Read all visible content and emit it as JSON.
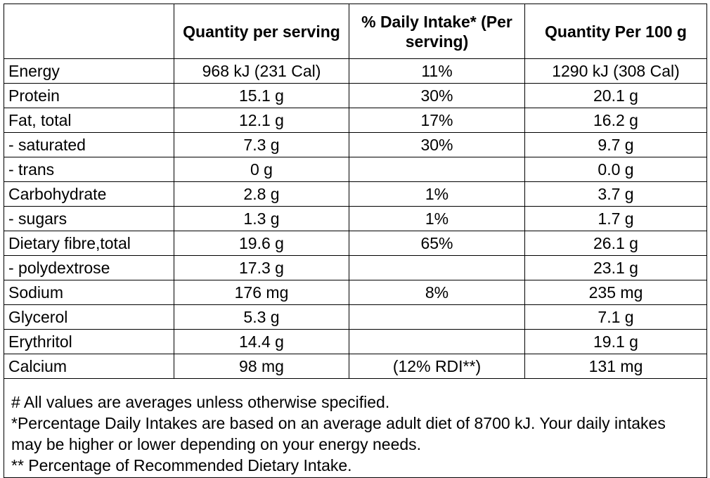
{
  "header": {
    "col0": "",
    "col1": "Quantity per serving",
    "col2": "% Daily Intake* (Per serving)",
    "col3": "Quantity Per 100 g"
  },
  "rows": [
    {
      "nutrient": "Energy",
      "per_serving": "968 kJ (231 Cal)",
      "daily_intake": "11%",
      "per_100g": "1290 kJ (308 Cal)"
    },
    {
      "nutrient": "Protein",
      "per_serving": "15.1 g",
      "daily_intake": "30%",
      "per_100g": "20.1 g"
    },
    {
      "nutrient": "Fat, total",
      "per_serving": "12.1 g",
      "daily_intake": "17%",
      "per_100g": "16.2 g"
    },
    {
      "nutrient": "- saturated",
      "per_serving": "7.3 g",
      "daily_intake": "30%",
      "per_100g": "9.7 g"
    },
    {
      "nutrient": "- trans",
      "per_serving": "0 g",
      "daily_intake": "",
      "per_100g": "0.0 g"
    },
    {
      "nutrient": "Carbohydrate",
      "per_serving": "2.8 g",
      "daily_intake": "1%",
      "per_100g": "3.7 g"
    },
    {
      "nutrient": "- sugars",
      "per_serving": "1.3 g",
      "daily_intake": "1%",
      "per_100g": "1.7 g"
    },
    {
      "nutrient": "Dietary fibre,total",
      "per_serving": "19.6 g",
      "daily_intake": "65%",
      "per_100g": "26.1 g"
    },
    {
      "nutrient": "- polydextrose",
      "per_serving": "17.3 g",
      "daily_intake": "",
      "per_100g": "23.1 g"
    },
    {
      "nutrient": "Sodium",
      "per_serving": "176 mg",
      "daily_intake": "8%",
      "per_100g": "235 mg"
    },
    {
      "nutrient": "Glycerol",
      "per_serving": "5.3 g",
      "daily_intake": "",
      "per_100g": "7.1 g"
    },
    {
      "nutrient": "Erythritol",
      "per_serving": "14.4 g",
      "daily_intake": "",
      "per_100g": "19.1 g"
    },
    {
      "nutrient": "Calcium",
      "per_serving": "98 mg",
      "daily_intake": "(12% RDI**)",
      "per_100g": "131 mg"
    }
  ],
  "notes": {
    "line1": "# All values are averages unless otherwise specified.",
    "line2": "*Percentage Daily Intakes are based on an average adult diet of 8700 kJ. Your daily intakes may be higher or lower depending on your energy needs.",
    "line3": "** Percentage of Recommended Dietary Intake."
  }
}
